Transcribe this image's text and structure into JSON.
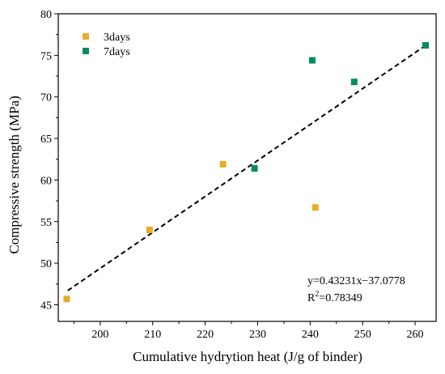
{
  "chart_data": {
    "type": "scatter",
    "xlabel": "Cumulative hydrytion heat (J/g of binder)",
    "ylabel": "Compressive strength (MPa)",
    "xlim": [
      192,
      264
    ],
    "ylim": [
      43,
      80
    ],
    "x_ticks": [
      200,
      210,
      220,
      230,
      240,
      250,
      260
    ],
    "y_ticks": [
      45,
      50,
      55,
      60,
      65,
      70,
      75,
      80
    ],
    "series": [
      {
        "name": "3days",
        "color": "#e8ac2a",
        "marker": "square",
        "points": [
          [
            193.6,
            45.7
          ],
          [
            209.4,
            54.0
          ],
          [
            223.4,
            61.9
          ],
          [
            241.0,
            56.7
          ]
        ]
      },
      {
        "name": "7days",
        "color": "#078a5e",
        "marker": "square",
        "points": [
          [
            229.4,
            61.4
          ],
          [
            240.4,
            74.4
          ],
          [
            248.4,
            71.8
          ],
          [
            262.0,
            76.2
          ]
        ]
      }
    ],
    "fit_line": {
      "style": "dashed",
      "color": "#000000",
      "x_range": [
        193.8,
        262.0
      ],
      "slope": 0.43231,
      "intercept": -37.0778
    },
    "annotations": {
      "equation": "y=0.43231x−37.0778",
      "r2_prefix": "R",
      "r2_sup": "2",
      "r2_value": "=0.78349"
    },
    "legend_position": "top-left",
    "grid": false
  }
}
